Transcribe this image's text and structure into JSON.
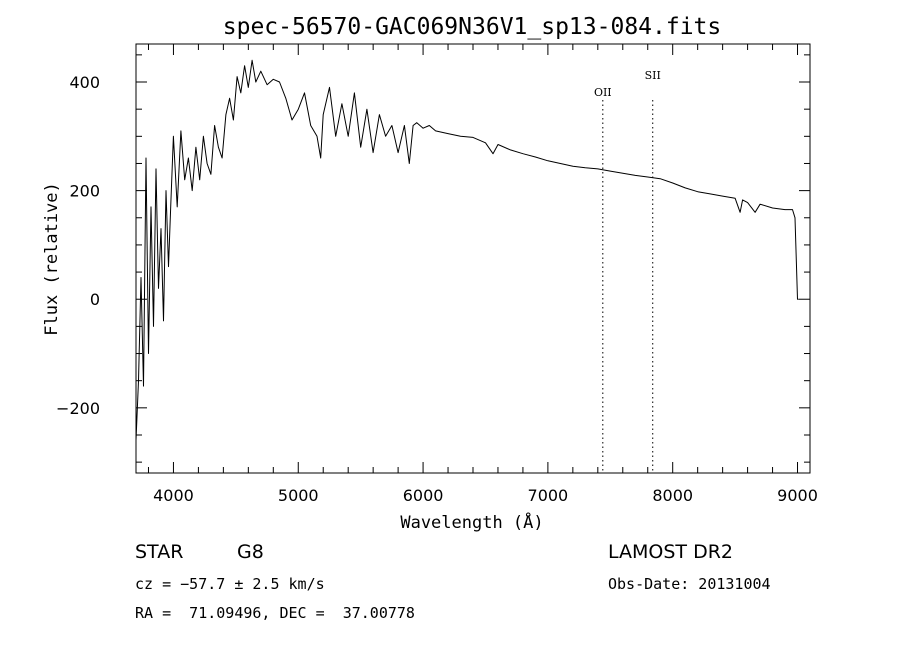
{
  "chart_data": {
    "type": "line",
    "title": "spec-56570-GAC069N36V1_sp13-084.fits",
    "xlabel": "Wavelength (Å)",
    "ylabel": "Flux (relative)",
    "xlim": [
      3700,
      9100
    ],
    "ylim": [
      -320,
      470
    ],
    "xticks": [
      4000,
      5000,
      6000,
      7000,
      8000,
      9000
    ],
    "xtick_labels": [
      "4000",
      "5000",
      "6000",
      "7000",
      "8000",
      "9000"
    ],
    "yticks": [
      -200,
      0,
      200,
      400
    ],
    "ytick_labels": [
      "−200",
      "0",
      "200",
      "400"
    ],
    "grid": false,
    "series": [
      {
        "x": [
          3700,
          3720,
          3740,
          3760,
          3780,
          3800,
          3820,
          3840,
          3860,
          3880,
          3900,
          3920,
          3940,
          3960,
          3980,
          4000,
          4030,
          4060,
          4090,
          4120,
          4150,
          4180,
          4210,
          4240,
          4270,
          4300,
          4330,
          4360,
          4390,
          4420,
          4450,
          4480,
          4510,
          4540,
          4570,
          4600,
          4630,
          4660,
          4700,
          4750,
          4800,
          4850,
          4900,
          4950,
          5000,
          5050,
          5100,
          5150,
          5180,
          5200,
          5250,
          5300,
          5350,
          5400,
          5450,
          5500,
          5550,
          5600,
          5650,
          5700,
          5750,
          5800,
          5850,
          5890,
          5920,
          5950,
          6000,
          6050,
          6100,
          6200,
          6300,
          6400,
          6500,
          6560,
          6600,
          6700,
          6800,
          6900,
          7000,
          7100,
          7200,
          7300,
          7400,
          7500,
          7600,
          7700,
          7800,
          7900,
          8000,
          8100,
          8200,
          8300,
          8400,
          8500,
          8540,
          8560,
          8600,
          8660,
          8700,
          8800,
          8900,
          8960,
          8980,
          9000,
          9010
        ],
        "y": [
          -260,
          -150,
          40,
          -160,
          260,
          -100,
          170,
          -50,
          240,
          20,
          130,
          -40,
          200,
          60,
          180,
          300,
          170,
          310,
          220,
          260,
          200,
          280,
          220,
          300,
          250,
          230,
          320,
          280,
          260,
          340,
          370,
          330,
          410,
          380,
          430,
          390,
          440,
          400,
          420,
          395,
          405,
          400,
          370,
          330,
          350,
          380,
          320,
          300,
          260,
          340,
          390,
          300,
          360,
          300,
          380,
          280,
          350,
          270,
          340,
          300,
          320,
          270,
          320,
          250,
          320,
          325,
          315,
          320,
          310,
          305,
          300,
          298,
          288,
          268,
          285,
          275,
          268,
          262,
          255,
          250,
          245,
          242,
          240,
          236,
          232,
          228,
          225,
          222,
          214,
          205,
          198,
          194,
          190,
          186,
          160,
          183,
          178,
          160,
          175,
          168,
          165,
          165,
          150,
          0,
          0
        ]
      }
    ],
    "annotations": [
      {
        "label": "OII",
        "x": 7440
      },
      {
        "label": "SII",
        "x": 7840
      }
    ]
  },
  "info": {
    "object_class": "STAR",
    "subclass": "G8",
    "velocity": "cz = −57.7 ± 2.5 km/s",
    "coords": "RA =  71.09496, DEC =  37.00778",
    "survey": "LAMOST DR2",
    "obs_date": "Obs-Date: 20131004"
  }
}
